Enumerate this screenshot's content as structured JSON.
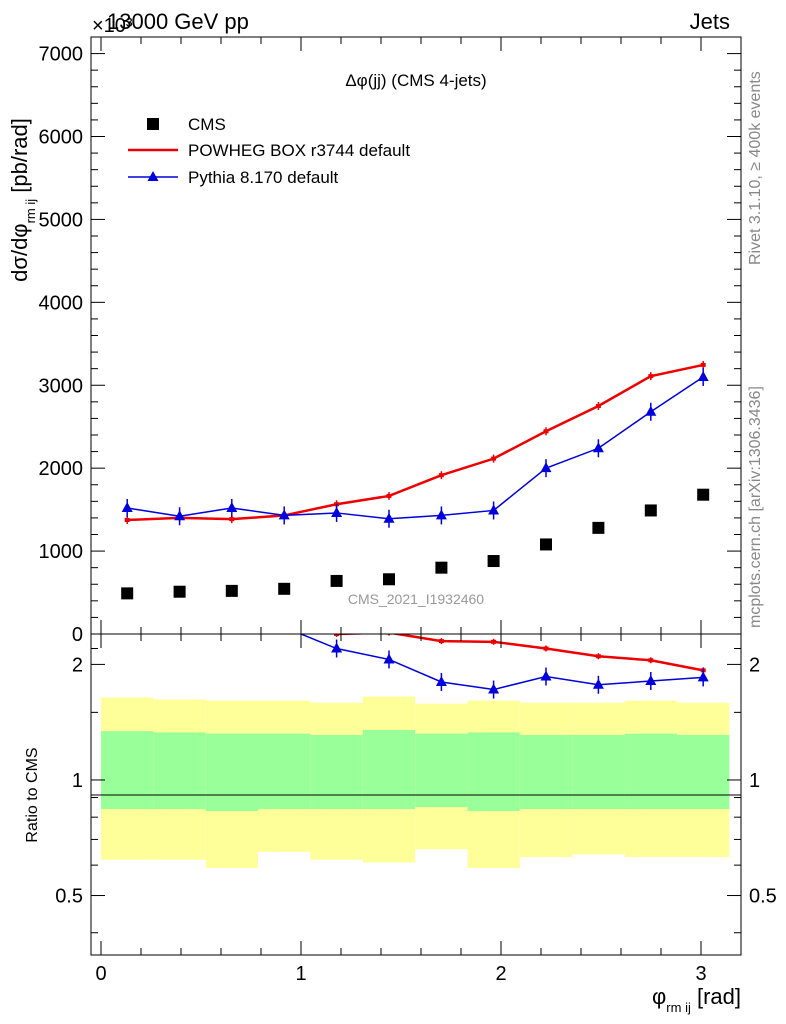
{
  "header": {
    "left": "13000 GeV pp",
    "right": "Jets",
    "exponent_label": "×10³"
  },
  "side_labels": {
    "rivet": "Rivet 3.1.10, ≥ 400k events",
    "mcplots": "mcplots.cern.ch [arXiv:1306.3436]"
  },
  "watermark": "CMS_2021_I1932460",
  "chart_data": [
    {
      "type": "scatter",
      "title": "Δφ(jj) (CMS 4-jets)",
      "ylabel": "dσ/dφ",
      "ylabel_sub": "rm ij",
      "ylabel_unit": "[pb/rad]",
      "y_multiplier": 1000,
      "xlim": [
        -0.05,
        3.2
      ],
      "ylim": [
        0,
        7200
      ],
      "y_ticks": [
        0,
        1000,
        2000,
        3000,
        4000,
        5000,
        6000,
        7000
      ],
      "y_tick_labels": [
        "0",
        "1000",
        "2000",
        "3000",
        "4000",
        "5000",
        "6000",
        "7000"
      ],
      "legend_position": "top-left",
      "x": [
        0.131,
        0.393,
        0.654,
        0.916,
        1.178,
        1.44,
        1.702,
        1.963,
        2.225,
        2.487,
        2.749,
        3.011
      ],
      "series": [
        {
          "name": "CMS",
          "color": "#000000",
          "marker": "square",
          "values": [
            490,
            510,
            520,
            545,
            640,
            660,
            800,
            880,
            1080,
            1280,
            1490,
            1680
          ]
        },
        {
          "name": "POWHEG BOX r3744 default",
          "color": "#ee0000",
          "marker": "line",
          "values": [
            1375,
            1400,
            1385,
            1430,
            1565,
            1665,
            1915,
            2115,
            2445,
            2750,
            3110,
            3245
          ]
        },
        {
          "name": "Pythia 8.170 default",
          "color": "#0000dd",
          "marker": "triangle",
          "values": [
            1520,
            1420,
            1520,
            1430,
            1460,
            1390,
            1430,
            1490,
            2000,
            2240,
            2680,
            3100
          ]
        }
      ]
    },
    {
      "type": "line",
      "ylabel": "Ratio to CMS",
      "xlabel": "φ",
      "xlabel_sub": "rm ij",
      "xlabel_unit": "[rad]",
      "log_y": true,
      "xlim": [
        -0.05,
        3.2
      ],
      "ylim": [
        0.35,
        2.4
      ],
      "x_ticks": [
        0,
        1,
        2,
        3
      ],
      "x_tick_labels": [
        "0",
        "1",
        "2",
        "3"
      ],
      "y_ticks": [
        0.5,
        1,
        2
      ],
      "y_tick_labels": [
        "0.5",
        "1",
        "2"
      ],
      "x": [
        1.178,
        1.44,
        1.702,
        1.963,
        2.225,
        2.487,
        2.749,
        3.011
      ],
      "series": [
        {
          "name": "POWHEG BOX r3744 default",
          "color": "#ee0000",
          "values": [
            2.4,
            2.42,
            2.3,
            2.29,
            2.2,
            2.1,
            2.05,
            1.93
          ]
        },
        {
          "name": "Pythia 8.170 default",
          "color": "#0000dd",
          "values": [
            2.2,
            2.06,
            1.8,
            1.72,
            1.86,
            1.77,
            1.81,
            1.85
          ]
        }
      ],
      "bands": {
        "x_edges": [
          0.0,
          0.262,
          0.524,
          0.785,
          1.047,
          1.309,
          1.571,
          1.833,
          2.094,
          2.356,
          2.618,
          2.88,
          3.142
        ],
        "yellow_low": [
          0.62,
          0.62,
          0.59,
          0.65,
          0.62,
          0.61,
          0.66,
          0.59,
          0.63,
          0.64,
          0.63,
          0.63
        ],
        "yellow_high": [
          1.64,
          1.62,
          1.61,
          1.61,
          1.59,
          1.65,
          1.58,
          1.61,
          1.59,
          1.59,
          1.61,
          1.59
        ],
        "green_low": [
          0.84,
          0.84,
          0.83,
          0.84,
          0.84,
          0.84,
          0.85,
          0.83,
          0.84,
          0.84,
          0.84,
          0.84
        ],
        "green_high": [
          1.34,
          1.33,
          1.32,
          1.32,
          1.31,
          1.35,
          1.32,
          1.33,
          1.31,
          1.31,
          1.32,
          1.31
        ],
        "yellow_color": "#ffff99",
        "green_color": "#99ff99"
      }
    }
  ]
}
